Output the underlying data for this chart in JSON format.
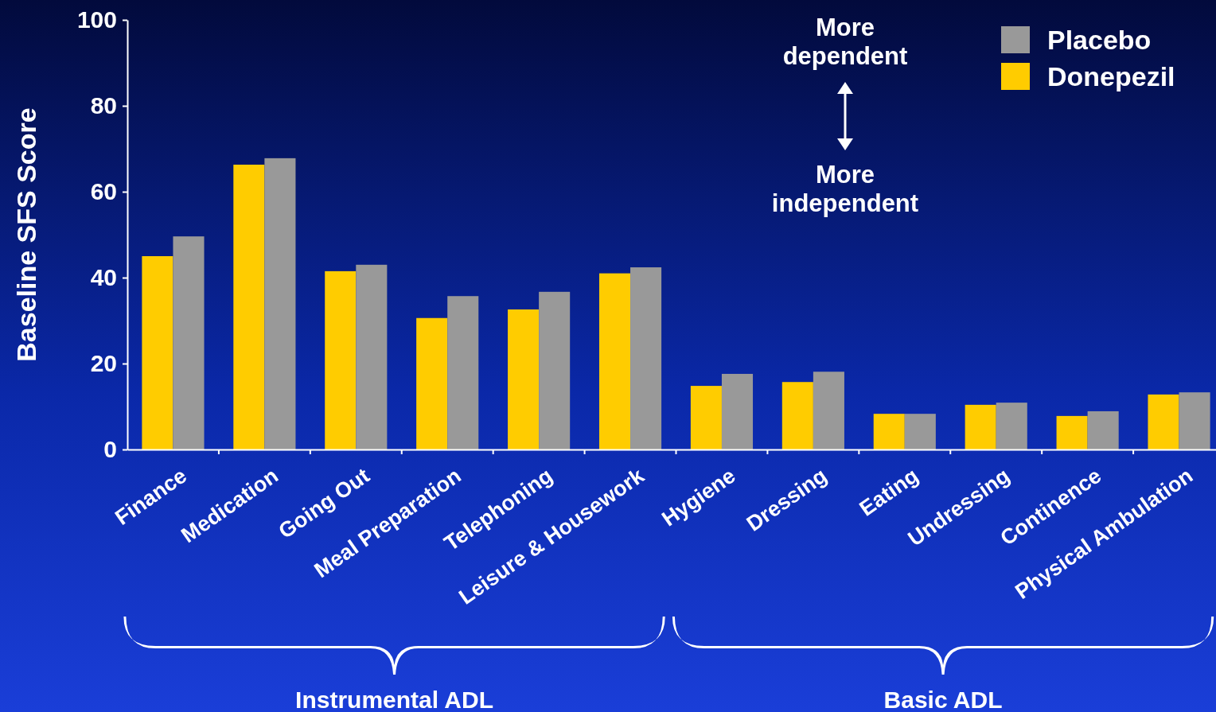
{
  "chart_data": {
    "type": "bar",
    "ylabel": "Baseline SFS Score",
    "categories": [
      "Finance",
      "Medication",
      "Going Out",
      "Meal Preparation",
      "Telephoning",
      "Leisure & Housework",
      "Hygiene",
      "Dressing",
      "Eating",
      "Undressing",
      "Continence",
      "Physical Ambulation"
    ],
    "series": [
      {
        "name": "Donepezil",
        "color": "#ffcc00",
        "values": [
          45,
          66.3,
          41.5,
          30.6,
          32.6,
          41,
          14.8,
          15.7,
          8.3,
          10.4,
          7.8,
          12.8
        ]
      },
      {
        "name": "Placebo",
        "color": "#999999",
        "values": [
          49.6,
          67.8,
          43,
          35.7,
          36.7,
          42.4,
          17.6,
          18.1,
          8.3,
          10.9,
          8.9,
          13.3
        ]
      }
    ],
    "ylim": [
      0,
      100
    ],
    "yticks": [
      0,
      20,
      40,
      60,
      80,
      100
    ],
    "grid": false,
    "legend": "top right",
    "annotations": [
      "More dependent",
      "More independent",
      "Instrumental ADL",
      "Basic ADL"
    ]
  }
}
